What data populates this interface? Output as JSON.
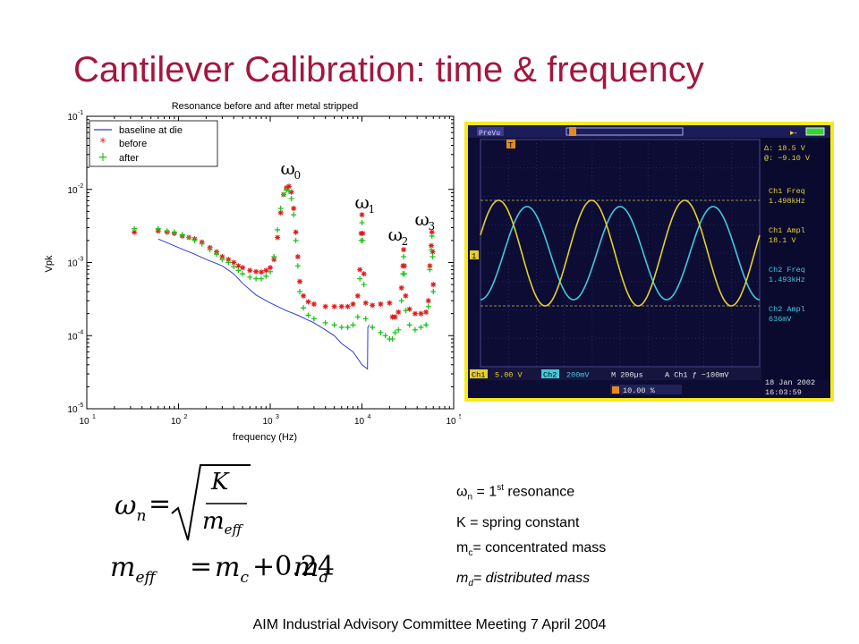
{
  "slide": {
    "title": "Cantilever Calibration: time & frequency",
    "footer": "AIM Industrial Advisory Committee Meeting 7 April 2004"
  },
  "chart_data": {
    "type": "line",
    "title": "Resonance before and after metal stripped",
    "xlabel": "frequency (Hz)",
    "ylabel": "Vpk",
    "xscale": "log",
    "yscale": "log",
    "xlim": [
      10,
      100000
    ],
    "ylim": [
      1e-05,
      0.1
    ],
    "x_ticks": [
      "10",
      "10",
      "10",
      "10",
      "10"
    ],
    "x_tick_exp": [
      "1",
      "2",
      "3",
      "4",
      "5"
    ],
    "y_ticks": [
      "10",
      "10",
      "10",
      "10",
      "10"
    ],
    "y_tick_exp": [
      "-1",
      "-2",
      "-3",
      "-4",
      "-5"
    ],
    "legend_position": "top-left",
    "annotations": [
      {
        "symbol": "ω",
        "sub": "0",
        "x": 1550,
        "y": 0.016
      },
      {
        "symbol": "ω",
        "sub": "1",
        "x": 10000,
        "y": 0.0055
      },
      {
        "symbol": "ω",
        "sub": "2",
        "x": 23000,
        "y": 0.002
      },
      {
        "symbol": "ω",
        "sub": "3",
        "x": 45000,
        "y": 0.0032
      }
    ],
    "series": [
      {
        "name": "baseline at die",
        "style": "line",
        "color": "#2f3bd6",
        "points": [
          [
            60,
            0.0021
          ],
          [
            80,
            0.0018
          ],
          [
            100,
            0.0016
          ],
          [
            150,
            0.0013
          ],
          [
            200,
            0.0011
          ],
          [
            300,
            0.0009
          ],
          [
            400,
            0.0007
          ],
          [
            500,
            0.00052
          ],
          [
            700,
            0.00036
          ],
          [
            1000,
            0.00028
          ],
          [
            1500,
            0.00022
          ],
          [
            2000,
            0.00019
          ],
          [
            3000,
            0.00015
          ],
          [
            4000,
            0.00012
          ],
          [
            5000,
            0.0001
          ],
          [
            6000,
            7.8e-05
          ],
          [
            8000,
            6e-05
          ],
          [
            10000,
            4e-05
          ],
          [
            11500,
            3.5e-05
          ],
          [
            11600,
            0.00013
          ],
          [
            12000,
            0.00014
          ]
        ]
      },
      {
        "name": "before",
        "style": "marker",
        "marker": "*",
        "color": "#e01b1b",
        "points": [
          [
            33,
            0.0026
          ],
          [
            60,
            0.0027
          ],
          [
            75,
            0.0026
          ],
          [
            90,
            0.0025
          ],
          [
            110,
            0.0023
          ],
          [
            130,
            0.0022
          ],
          [
            150,
            0.0021
          ],
          [
            180,
            0.0019
          ],
          [
            220,
            0.0016
          ],
          [
            260,
            0.0014
          ],
          [
            300,
            0.0012
          ],
          [
            350,
            0.0011
          ],
          [
            400,
            0.001
          ],
          [
            450,
            0.0009
          ],
          [
            500,
            0.00085
          ],
          [
            600,
            0.00078
          ],
          [
            700,
            0.00075
          ],
          [
            800,
            0.00074
          ],
          [
            900,
            0.00078
          ],
          [
            1000,
            0.00085
          ],
          [
            1100,
            0.0011
          ],
          [
            1200,
            0.0022
          ],
          [
            1300,
            0.0048
          ],
          [
            1400,
            0.0085
          ],
          [
            1500,
            0.0105
          ],
          [
            1600,
            0.011
          ],
          [
            1700,
            0.0092
          ],
          [
            1800,
            0.0055
          ],
          [
            1900,
            0.0026
          ],
          [
            2000,
            0.0012
          ],
          [
            2100,
            0.00055
          ],
          [
            2300,
            0.00035
          ],
          [
            2600,
            0.00029
          ],
          [
            3000,
            0.00027
          ],
          [
            4000,
            0.00025
          ],
          [
            5000,
            0.00025
          ],
          [
            6000,
            0.00025
          ],
          [
            7000,
            0.00025
          ],
          [
            8000,
            0.00027
          ],
          [
            9000,
            0.00035
          ],
          [
            9500,
            0.0008
          ],
          [
            9800,
            0.0025
          ],
          [
            10000,
            0.0045
          ],
          [
            10200,
            0.0025
          ],
          [
            10500,
            0.0007
          ],
          [
            11000,
            0.00028
          ],
          [
            13000,
            0.00026
          ],
          [
            16000,
            0.00027
          ],
          [
            20000,
            0.00028
          ],
          [
            21500,
            0.00018
          ],
          [
            23000,
            0.00018
          ],
          [
            25000,
            0.00021
          ],
          [
            27000,
            0.00045
          ],
          [
            28000,
            0.0009
          ],
          [
            28500,
            0.0015
          ],
          [
            29000,
            0.0009
          ],
          [
            30000,
            0.00035
          ],
          [
            33000,
            0.00023
          ],
          [
            38000,
            0.0002
          ],
          [
            44000,
            0.0002
          ],
          [
            50000,
            0.00021
          ],
          [
            53000,
            0.0003
          ],
          [
            55000,
            0.0009
          ],
          [
            57000,
            0.0017
          ],
          [
            58000,
            0.0026
          ],
          [
            59000,
            0.0014
          ],
          [
            60000,
            0.0005
          ]
        ]
      },
      {
        "name": "after",
        "style": "marker",
        "marker": "+",
        "color": "#1ec41e",
        "points": [
          [
            33,
            0.0029
          ],
          [
            60,
            0.0029
          ],
          [
            75,
            0.0027
          ],
          [
            90,
            0.0026
          ],
          [
            110,
            0.0024
          ],
          [
            130,
            0.0022
          ],
          [
            150,
            0.002
          ],
          [
            180,
            0.0018
          ],
          [
            220,
            0.0015
          ],
          [
            260,
            0.0013
          ],
          [
            300,
            0.0011
          ],
          [
            350,
            0.001
          ],
          [
            400,
            0.00088
          ],
          [
            450,
            0.00078
          ],
          [
            500,
            0.0007
          ],
          [
            600,
            0.00063
          ],
          [
            700,
            0.0006
          ],
          [
            800,
            0.0006
          ],
          [
            900,
            0.00065
          ],
          [
            1000,
            0.00075
          ],
          [
            1100,
            0.0012
          ],
          [
            1200,
            0.0028
          ],
          [
            1300,
            0.0055
          ],
          [
            1400,
            0.0085
          ],
          [
            1500,
            0.0098
          ],
          [
            1600,
            0.0095
          ],
          [
            1700,
            0.0075
          ],
          [
            1800,
            0.0045
          ],
          [
            1900,
            0.002
          ],
          [
            2000,
            0.0009
          ],
          [
            2100,
            0.0004
          ],
          [
            2300,
            0.00024
          ],
          [
            2600,
            0.00019
          ],
          [
            3000,
            0.00017
          ],
          [
            4000,
            0.00015
          ],
          [
            5000,
            0.00014
          ],
          [
            6000,
            0.00013
          ],
          [
            7000,
            0.00013
          ],
          [
            8000,
            0.00014
          ],
          [
            9000,
            0.00018
          ],
          [
            9500,
            0.0006
          ],
          [
            9800,
            0.002
          ],
          [
            10000,
            0.0035
          ],
          [
            10200,
            0.002
          ],
          [
            10500,
            0.0005
          ],
          [
            11000,
            0.00017
          ],
          [
            13000,
            0.00013
          ],
          [
            16000,
            0.00011
          ],
          [
            18000,
            0.0001
          ],
          [
            20000,
            9e-05
          ],
          [
            21500,
            9e-05
          ],
          [
            23000,
            0.00011
          ],
          [
            25000,
            0.00012
          ],
          [
            27000,
            0.0003
          ],
          [
            28000,
            0.0007
          ],
          [
            28500,
            0.0012
          ],
          [
            29000,
            0.0007
          ],
          [
            30000,
            0.00022
          ],
          [
            33000,
            0.00014
          ],
          [
            38000,
            0.00012
          ],
          [
            44000,
            0.00013
          ],
          [
            50000,
            0.00014
          ],
          [
            53000,
            0.00025
          ],
          [
            55000,
            0.0008
          ],
          [
            57000,
            0.0015
          ],
          [
            58000,
            0.0023
          ],
          [
            59000,
            0.0012
          ],
          [
            60000,
            0.0004
          ]
        ]
      }
    ]
  },
  "scope": {
    "mode": "PreVu",
    "trigger_marker": "T",
    "ch1_marker": "1",
    "cursor_delta": "Δ:   18.5 V",
    "cursor_at": "@:  −9.10 V",
    "measurements": [
      {
        "label": "Ch1 Freq",
        "value": "1.498kHz"
      },
      {
        "label": "Ch1 Ampl",
        "value": "18.1 V"
      },
      {
        "label": "Ch2 Freq",
        "value": "1.493kHz"
      },
      {
        "label": "Ch2 Ampl",
        "value": "636mV"
      }
    ],
    "ch1_label": "Ch1",
    "ch1_scale": "5.00 V",
    "ch2_label": "Ch2",
    "ch2_scale": "200mV",
    "timebase": "M 200µs",
    "trigger_info": "A  Ch1  ƒ −100mV",
    "trigger_pos": "10.00 %",
    "date": "18 Jan  2002",
    "time": "16:03:59",
    "ch1_color": "#e5d12c",
    "ch2_color": "#43c9dc",
    "ch1_cycles": 3.0,
    "ch1_amplitude": 0.85,
    "ch2_amplitude": 0.75,
    "phase_shift_deg": 110
  },
  "formulas": {
    "lhs": "ω",
    "lhs_sub": "n",
    "eq": "=",
    "numerator": "K",
    "denominator": "m",
    "denominator_sub": "eff",
    "mass_lhs": "m",
    "mass_lhs_sub": "eff",
    "mass_eq": "=",
    "mass_term1": "m",
    "mass_term1_sub": "c",
    "mass_plus": "+0.24",
    "mass_term2": "m",
    "mass_term2_sub": "d"
  },
  "definitions": [
    {
      "symbol": "ω",
      "sub": "n",
      "sup": "st",
      "pre": " = 1",
      "post": " resonance"
    },
    {
      "text": "K = spring constant"
    },
    {
      "symbol": "m",
      "sub": "c",
      "post": "= concentrated mass"
    },
    {
      "symbol": "m",
      "sub": "d",
      "post": "= distributed mass",
      "italic": true
    }
  ]
}
